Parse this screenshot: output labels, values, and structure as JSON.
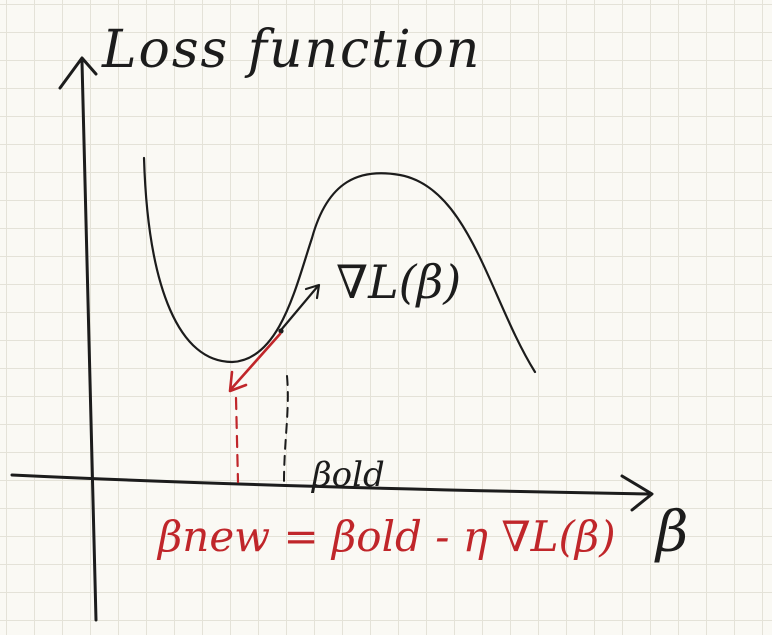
{
  "labels": {
    "y_axis": "Loss function",
    "x_axis": "β",
    "gradient": "∇L(β)",
    "beta_old": "βold",
    "update_rule": "βnew = βold - η ∇L(β)"
  },
  "colors": {
    "ink": "#1c1c1c",
    "accent": "#c0262a",
    "paper": "#faf9f4",
    "grid": "#e4e2d8"
  }
}
